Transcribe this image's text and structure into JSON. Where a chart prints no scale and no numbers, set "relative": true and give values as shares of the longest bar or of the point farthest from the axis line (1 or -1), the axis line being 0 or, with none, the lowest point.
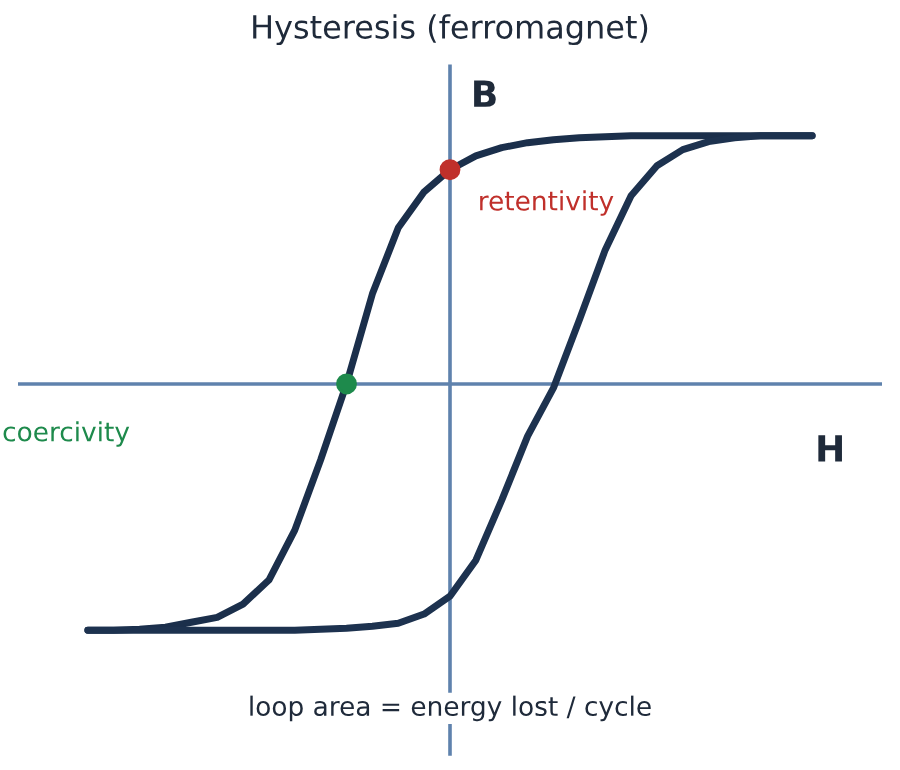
{
  "chart_data": {
    "type": "line",
    "relative": true,
    "title": "Hysteresis (ferromagnet)",
    "xlabel": "H",
    "ylabel": "B",
    "legend": false,
    "marker": "none",
    "line_style": "solid",
    "categories": [
      null,
      null,
      null,
      null,
      null,
      null,
      null,
      null,
      null,
      null,
      null,
      null,
      null,
      null,
      null,
      null,
      null,
      null,
      null,
      null,
      null,
      null,
      null,
      null,
      null,
      null,
      null,
      null,
      null
    ],
    "series": [
      {
        "color": "#1b2f4b",
        "values": [
          -0.992,
          -0.992,
          -0.988,
          -0.98,
          -0.96,
          -0.94,
          -0.887,
          -0.79,
          -0.589,
          -0.306,
          0,
          0.363,
          0.629,
          0.774,
          0.863,
          0.919,
          0.952,
          0.972,
          0.984,
          0.992,
          0.996,
          1.0,
          1.0,
          1.0,
          1.0,
          1.0,
          1.0,
          1.0,
          1.0
        ]
      },
      {
        "color": "#1d324f",
        "values": [
          -0.992,
          -0.992,
          -0.992,
          -0.992,
          -0.992,
          -0.992,
          -0.992,
          -0.992,
          -0.992,
          -0.988,
          -0.984,
          -0.976,
          -0.964,
          -0.927,
          -0.855,
          -0.71,
          -0.468,
          -0.21,
          -0.016,
          0.258,
          0.54,
          0.758,
          0.879,
          0.944,
          0.976,
          0.992,
          1.0,
          1.0,
          1.0
        ]
      },
      {
        "marker": "circle",
        "color": "#1e8a4c",
        "values": [
          null,
          null,
          null,
          null,
          null,
          null,
          null,
          null,
          null,
          null,
          0,
          null,
          null,
          null,
          null,
          null,
          null,
          null,
          null,
          null,
          null,
          null,
          null,
          null,
          null,
          null,
          null,
          null,
          null
        ]
      },
      {
        "marker": "circle",
        "color": "#c0302b",
        "values": [
          null,
          null,
          null,
          null,
          null,
          null,
          null,
          null,
          null,
          null,
          null,
          null,
          null,
          null,
          0.863,
          null,
          null,
          null,
          null,
          null,
          null,
          null,
          null,
          null,
          null,
          null,
          null,
          null,
          null
        ]
      }
    ],
    "ref_lines": [
      {
        "axis": "y",
        "value": 0,
        "color": "#5f82ad"
      }
    ],
    "annotations": [
      "coercivity",
      "retentivity",
      "loop area = energy lost / cycle"
    ]
  }
}
